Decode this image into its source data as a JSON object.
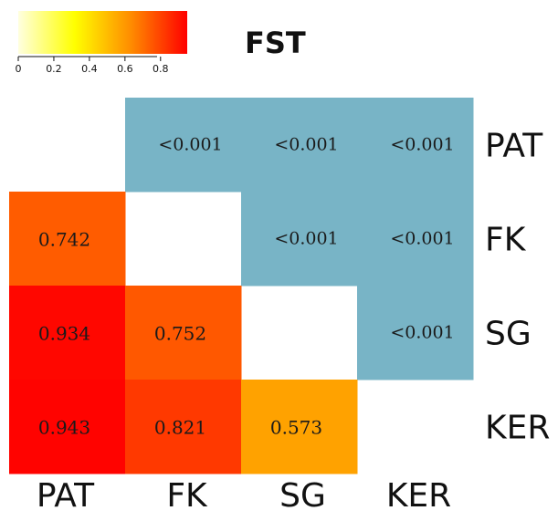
{
  "chart_data": {
    "type": "heatmap",
    "title": "FST",
    "populations": [
      "PAT",
      "FK",
      "SG",
      "KER"
    ],
    "fst_lower_triangle": [
      {
        "row": "FK",
        "col": "PAT",
        "value": 0.742,
        "label": "0.742"
      },
      {
        "row": "SG",
        "col": "PAT",
        "value": 0.934,
        "label": "0.934"
      },
      {
        "row": "SG",
        "col": "FK",
        "value": 0.752,
        "label": "0.752"
      },
      {
        "row": "KER",
        "col": "PAT",
        "value": 0.943,
        "label": "0.943"
      },
      {
        "row": "KER",
        "col": "FK",
        "value": 0.821,
        "label": "0.821"
      },
      {
        "row": "KER",
        "col": "SG",
        "value": 0.573,
        "label": "0.573"
      }
    ],
    "pvalues_upper_triangle": [
      {
        "row": "PAT",
        "col": "FK",
        "label": "<0.001"
      },
      {
        "row": "PAT",
        "col": "SG",
        "label": "<0.001"
      },
      {
        "row": "PAT",
        "col": "KER",
        "label": "<0.001"
      },
      {
        "row": "FK",
        "col": "SG",
        "label": "<0.001"
      },
      {
        "row": "FK",
        "col": "KER",
        "label": "<0.001"
      },
      {
        "row": "SG",
        "col": "KER",
        "label": "<0.001"
      }
    ],
    "colorbar": {
      "ticks": [
        "0",
        "0.2",
        "0.4",
        "0.6",
        "0.8"
      ],
      "tick_values": [
        0,
        0.2,
        0.4,
        0.6,
        0.8
      ],
      "range": [
        0,
        0.95
      ],
      "colors": [
        "#ffffe0",
        "#ffff00",
        "#ff8c00",
        "#ff0000"
      ]
    },
    "pvalue_cell_color": "#78b4c6"
  }
}
